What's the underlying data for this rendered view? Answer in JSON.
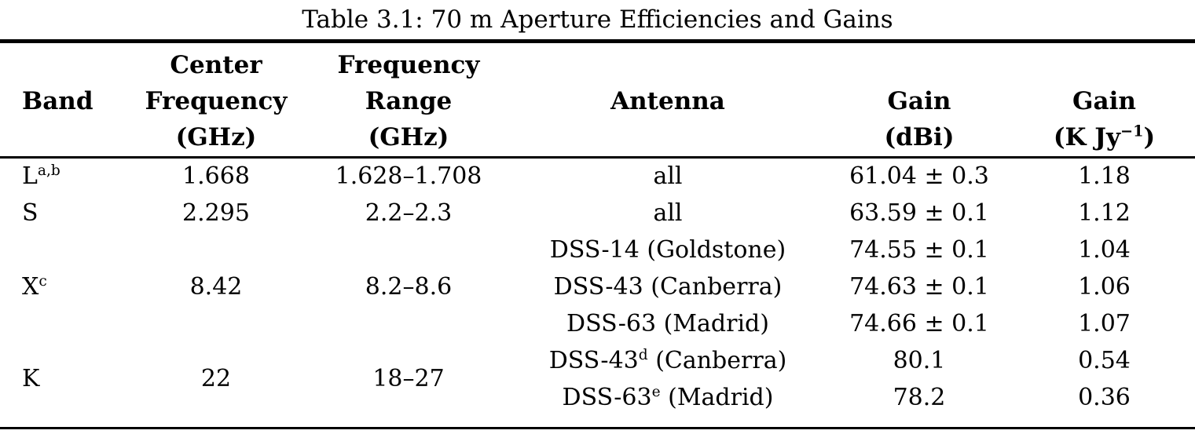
{
  "caption": "Table 3.1: 70 m Aperture Efficiencies and Gains",
  "headers": {
    "band": [
      "",
      "Band",
      ""
    ],
    "center_frequency": [
      "Center",
      "Frequency",
      "(GHz)"
    ],
    "frequency_range": [
      "Frequency",
      "Range",
      "(GHz)"
    ],
    "antenna": [
      "",
      "Antenna",
      ""
    ],
    "gain_dbi": [
      "",
      "Gain",
      "(dBi)"
    ],
    "gain_kjy": {
      "top": "",
      "label": "Gain",
      "unit_prefix": "(K Jy",
      "unit_sup": "−1",
      "unit_suffix": ")"
    }
  },
  "rows": [
    {
      "band": "L",
      "band_sup": "a,b",
      "center": "1.668",
      "range": "1.628–1.708",
      "antennas": [
        {
          "pre": "all",
          "sup": "",
          "post": "",
          "gain_dbi": "61.04 ± 0.3",
          "gain_kjy": "1.18"
        }
      ]
    },
    {
      "band": "S",
      "band_sup": "",
      "center": "2.295",
      "range": "2.2–2.3",
      "antennas": [
        {
          "pre": "all",
          "sup": "",
          "post": "",
          "gain_dbi": "63.59 ± 0.1",
          "gain_kjy": "1.12"
        }
      ]
    },
    {
      "band": "X",
      "band_sup": "c",
      "center": "8.42",
      "range": "8.2–8.6",
      "antennas": [
        {
          "pre": "DSS-14",
          "sup": "",
          "post": " (Goldstone)",
          "gain_dbi": "74.55 ± 0.1",
          "gain_kjy": "1.04"
        },
        {
          "pre": "DSS-43",
          "sup": "",
          "post": " (Canberra)",
          "gain_dbi": "74.63 ± 0.1",
          "gain_kjy": "1.06"
        },
        {
          "pre": "DSS-63",
          "sup": "",
          "post": " (Madrid)",
          "gain_dbi": "74.66 ± 0.1",
          "gain_kjy": "1.07"
        }
      ]
    },
    {
      "band": "K",
      "band_sup": "",
      "center": "22",
      "range": "18–27",
      "antennas": [
        {
          "pre": "DSS-43",
          "sup": "d",
          "post": " (Canberra)",
          "gain_dbi": "80.1",
          "gain_kjy": "0.54"
        },
        {
          "pre": "DSS-63",
          "sup": "e",
          "post": " (Madrid)",
          "gain_dbi": "78.2",
          "gain_kjy": "0.36"
        }
      ]
    }
  ]
}
